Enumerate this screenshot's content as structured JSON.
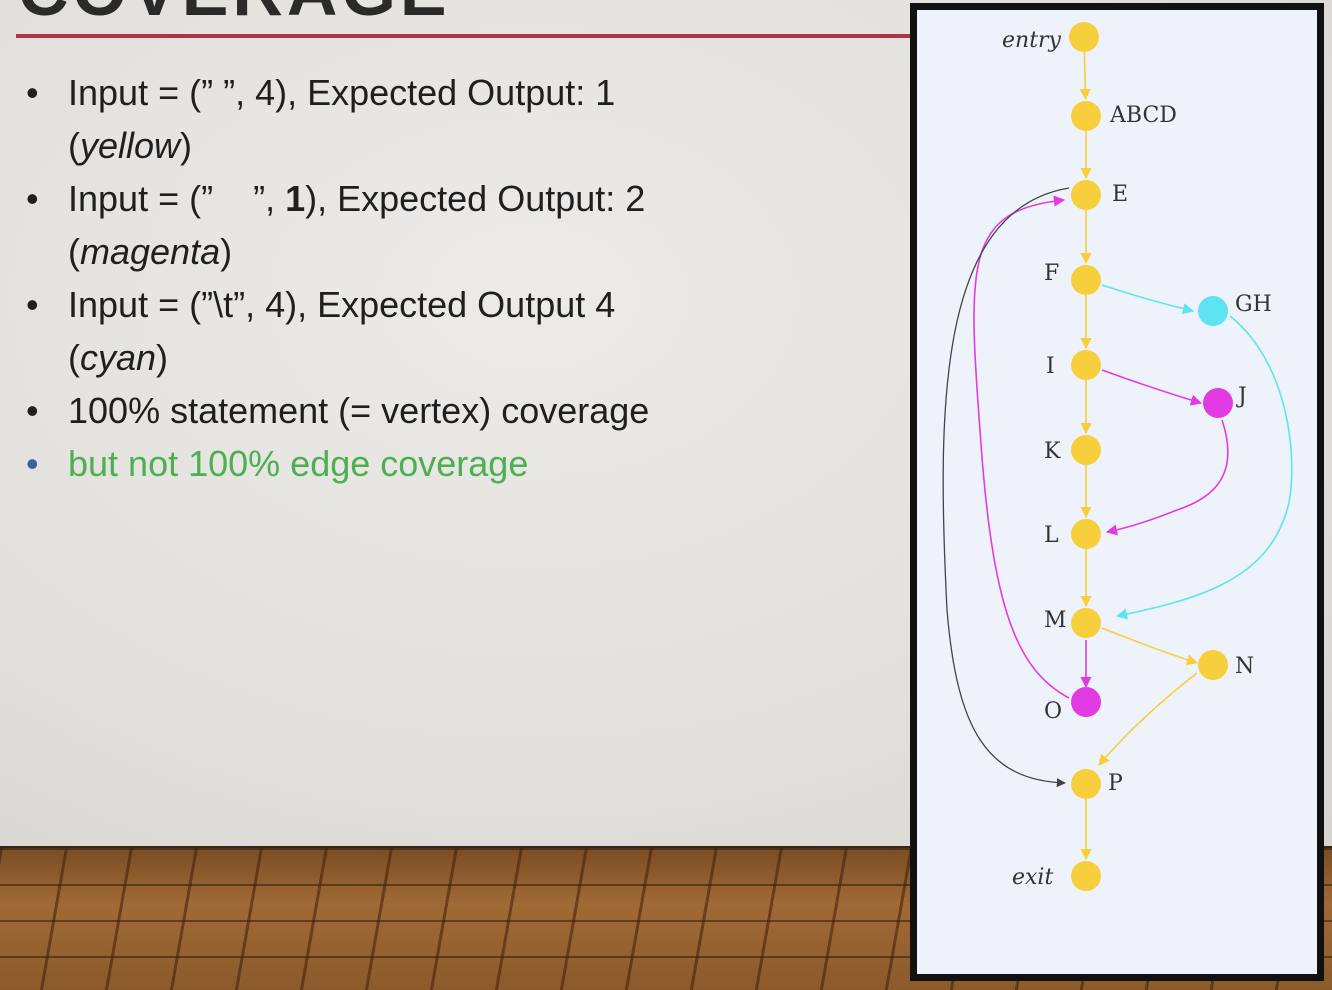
{
  "slide": {
    "title": "COVERAGE",
    "bullets": [
      {
        "line1": "Input = (” ”, 4), Expected Output: 1",
        "line2_pre": "(",
        "line2_em": "yellow",
        "line2_post": ")"
      },
      {
        "line1_pre": "Input = (”    ”, ",
        "line1_bold": "1",
        "line1_post": "), Expected Output: 2",
        "line2_pre": "(",
        "line2_em": "magenta",
        "line2_post": ")"
      },
      {
        "line1": "Input = (”\\t”, 4), Expected Output 4",
        "line2_pre": "(",
        "line2_em": "cyan",
        "line2_post": ")"
      },
      {
        "line1": "100% statement (= vertex) coverage"
      },
      {
        "line1": "but not 100% edge coverage"
      }
    ],
    "bullet_symbol": "•"
  },
  "graph": {
    "colors": {
      "yellow": "#f7cf3d",
      "magenta": "#e33be3",
      "cyan": "#5de3f2",
      "black": "#444444"
    },
    "nodes": [
      {
        "id": "entry",
        "label": "entry",
        "color": "yellow"
      },
      {
        "id": "ABCD",
        "label": "ABCD",
        "color": "yellow"
      },
      {
        "id": "E",
        "label": "E",
        "color": "yellow"
      },
      {
        "id": "F",
        "label": "F",
        "color": "yellow"
      },
      {
        "id": "GH",
        "label": "GH",
        "color": "cyan"
      },
      {
        "id": "I",
        "label": "I",
        "color": "yellow"
      },
      {
        "id": "J",
        "label": "J",
        "color": "magenta"
      },
      {
        "id": "K",
        "label": "K",
        "color": "yellow"
      },
      {
        "id": "L",
        "label": "L",
        "color": "yellow"
      },
      {
        "id": "M",
        "label": "M",
        "color": "yellow"
      },
      {
        "id": "N",
        "label": "N",
        "color": "yellow"
      },
      {
        "id": "O",
        "label": "O",
        "color": "magenta"
      },
      {
        "id": "P",
        "label": "P",
        "color": "yellow"
      },
      {
        "id": "exit",
        "label": "exit",
        "color": "yellow"
      }
    ],
    "edges": [
      {
        "from": "entry",
        "to": "ABCD",
        "color": "yellow"
      },
      {
        "from": "ABCD",
        "to": "E",
        "color": "yellow"
      },
      {
        "from": "E",
        "to": "F",
        "color": "yellow"
      },
      {
        "from": "F",
        "to": "GH",
        "color": "cyan"
      },
      {
        "from": "F",
        "to": "I",
        "color": "yellow"
      },
      {
        "from": "GH",
        "to": "M",
        "color": "cyan"
      },
      {
        "from": "I",
        "to": "J",
        "color": "magenta"
      },
      {
        "from": "I",
        "to": "K",
        "color": "yellow"
      },
      {
        "from": "J",
        "to": "L",
        "color": "magenta"
      },
      {
        "from": "K",
        "to": "L",
        "color": "yellow"
      },
      {
        "from": "L",
        "to": "M",
        "color": "yellow"
      },
      {
        "from": "M",
        "to": "N",
        "color": "yellow"
      },
      {
        "from": "M",
        "to": "O",
        "color": "magenta"
      },
      {
        "from": "O",
        "to": "E",
        "color": "magenta"
      },
      {
        "from": "E",
        "to": "P",
        "color": "black"
      },
      {
        "from": "N",
        "to": "P",
        "color": "yellow"
      },
      {
        "from": "P",
        "to": "exit",
        "color": "yellow"
      }
    ]
  }
}
